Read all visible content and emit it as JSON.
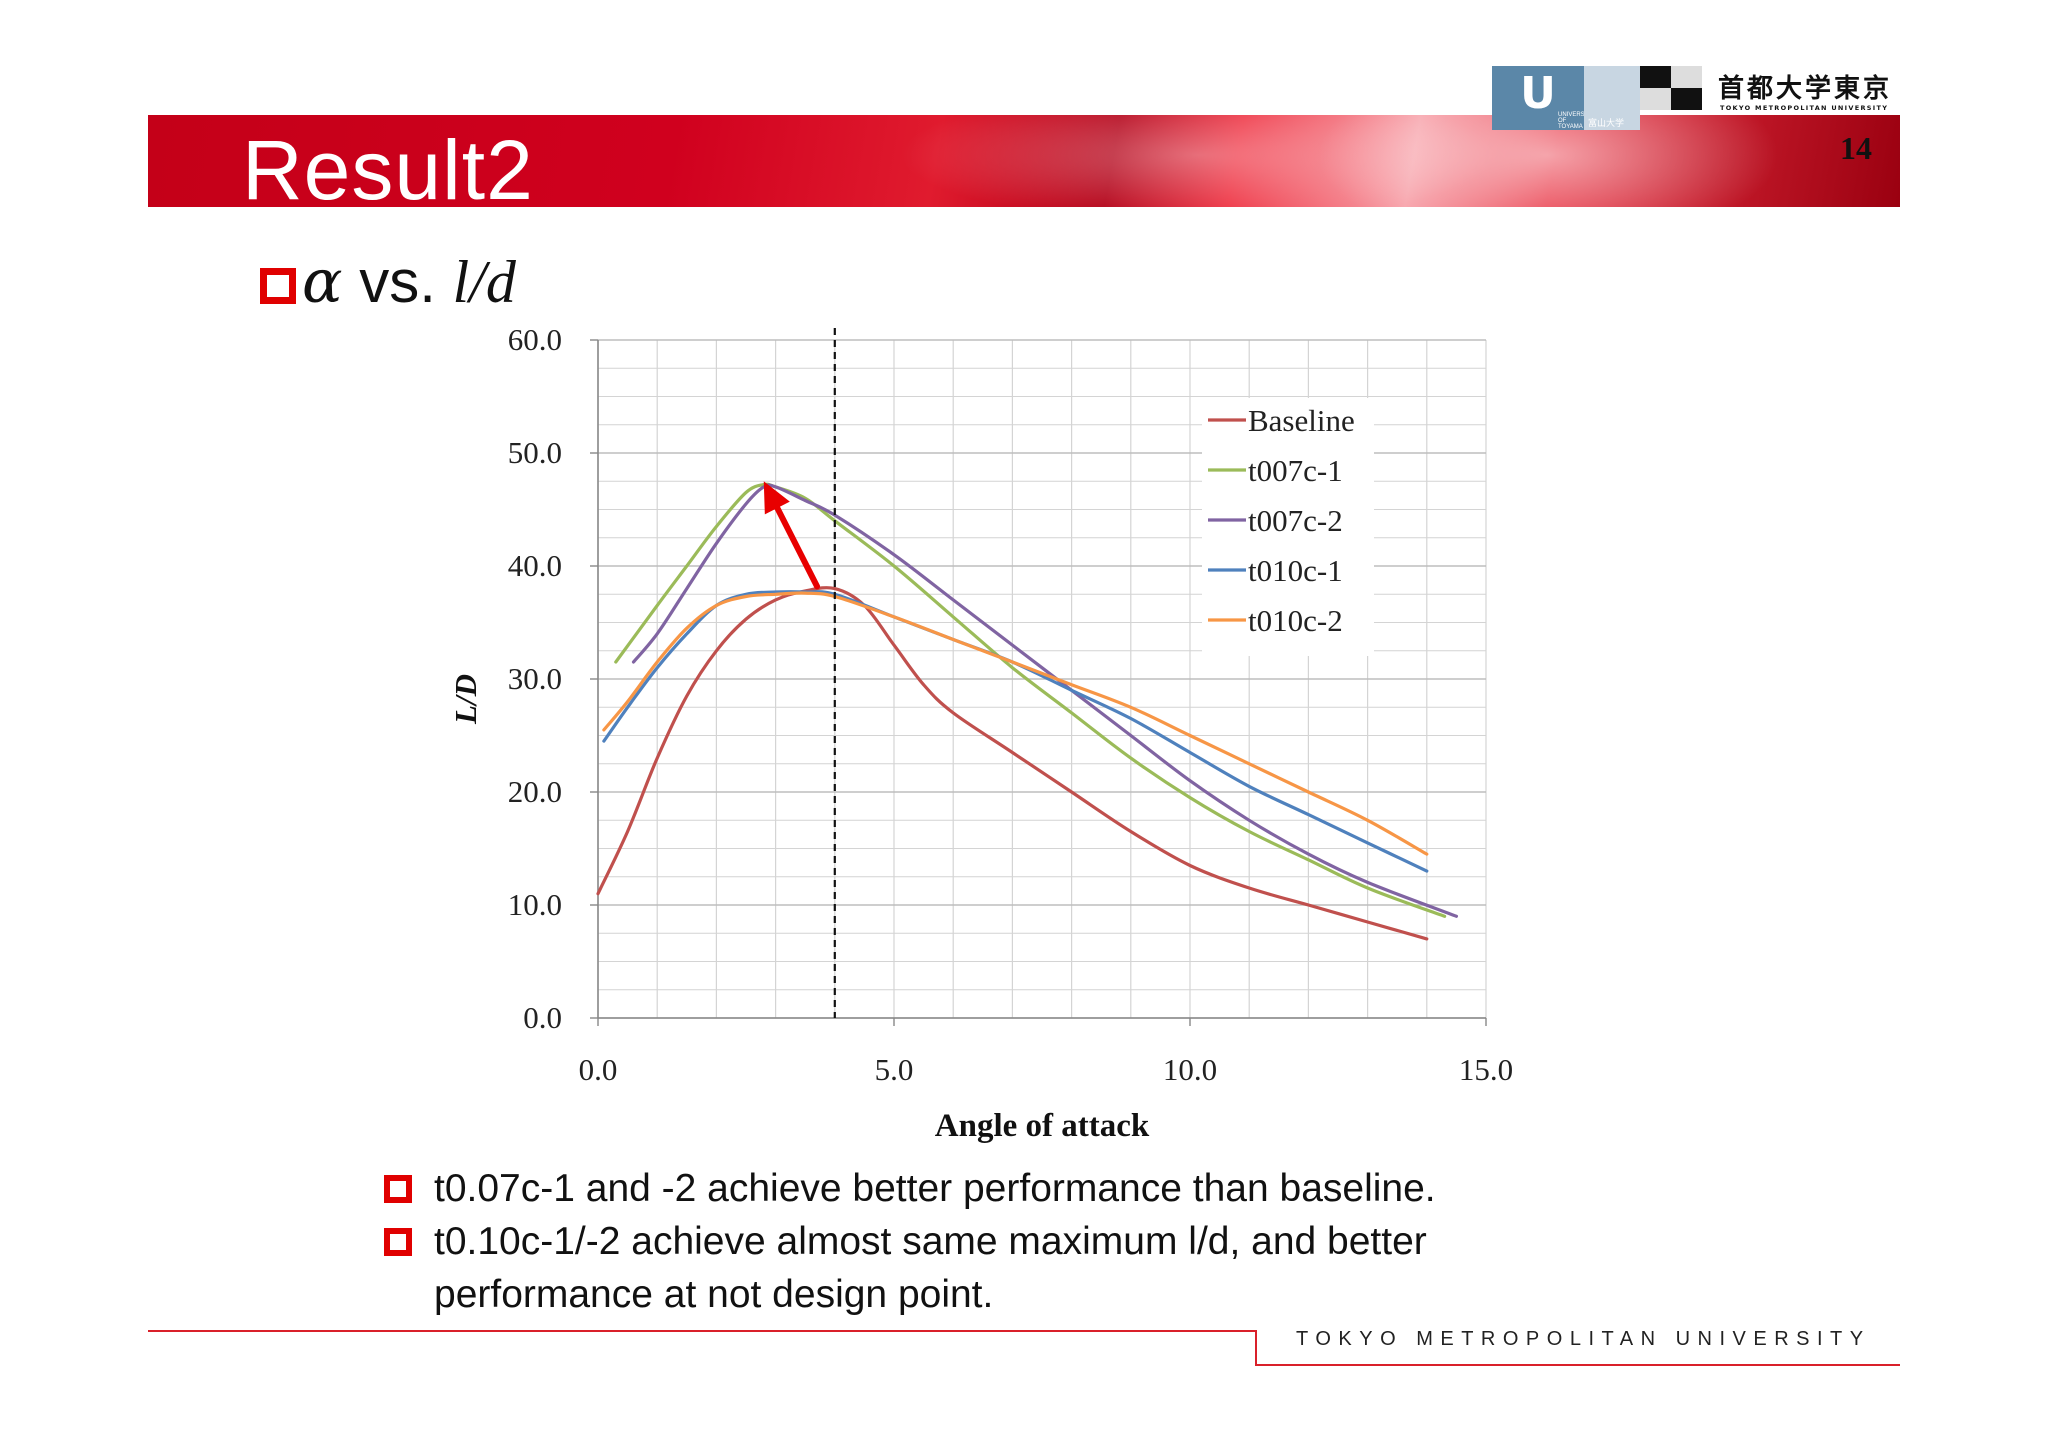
{
  "slide": {
    "title": "Result2",
    "page_number": "14",
    "subtitle": {
      "symbol": "α",
      "vs": "vs.",
      "ratio": "l/d"
    },
    "footer": "TOKYO METROPOLITAN UNIVERSITY"
  },
  "logos": {
    "toyama": {
      "glyph": "U",
      "sub_text": "富山大学",
      "caption": "UNIVERSITY OF TOYAMA"
    },
    "tmu": {
      "jp": "首都大学東京",
      "en": "TOKYO METROPOLITAN UNIVERSITY"
    }
  },
  "bullets": [
    {
      "line1": "t0.07c-1 and -2 achieve better performance than baseline.",
      "line2": ""
    },
    {
      "line1": "t0.10c-1/-2 achieve almost same maximum l/d, and better",
      "line2": "performance at not design point."
    }
  ],
  "colors": {
    "accent_red": "#e00000",
    "grid": "#d4d4d4",
    "baseline": "#c0504d",
    "t007c1": "#9bbb59",
    "t007c2": "#8064a2",
    "t010c1": "#4f81bd",
    "t010c2": "#f79646",
    "arrow": "#e80000"
  },
  "chart_data": {
    "type": "line",
    "title": "",
    "xlabel": "Angle of attack",
    "ylabel": "L/D",
    "xlim": [
      0,
      15
    ],
    "ylim": [
      0,
      60
    ],
    "x_ticks": [
      "0.0",
      "5.0",
      "10.0",
      "15.0"
    ],
    "y_ticks": [
      "0.0",
      "10.0",
      "20.0",
      "30.0",
      "40.0",
      "50.0",
      "60.0"
    ],
    "grid": true,
    "legend_position": "top-right",
    "design_point_x": 4.0,
    "series": [
      {
        "name": "Baseline",
        "color": "#c0504d",
        "points": [
          [
            0,
            11
          ],
          [
            0.5,
            16.5
          ],
          [
            1,
            23
          ],
          [
            1.5,
            28.5
          ],
          [
            2,
            32.5
          ],
          [
            2.5,
            35.3
          ],
          [
            3,
            37
          ],
          [
            3.5,
            37.8
          ],
          [
            4,
            38
          ],
          [
            4.5,
            36.5
          ],
          [
            5,
            33
          ],
          [
            5.5,
            29.5
          ],
          [
            6,
            27
          ],
          [
            7,
            23.5
          ],
          [
            8,
            20
          ],
          [
            9,
            16.5
          ],
          [
            10,
            13.5
          ],
          [
            11,
            11.5
          ],
          [
            12,
            10
          ],
          [
            13,
            8.5
          ],
          [
            14,
            7
          ]
        ]
      },
      {
        "name": "t007c-1",
        "color": "#9bbb59",
        "points": [
          [
            0.3,
            31.5
          ],
          [
            1,
            36.5
          ],
          [
            1.5,
            40
          ],
          [
            2,
            43.5
          ],
          [
            2.5,
            46.5
          ],
          [
            2.8,
            47.2
          ],
          [
            3,
            47
          ],
          [
            3.5,
            46
          ],
          [
            4,
            44
          ],
          [
            5,
            40
          ],
          [
            6,
            35.5
          ],
          [
            7,
            31
          ],
          [
            8,
            27
          ],
          [
            9,
            23
          ],
          [
            10,
            19.5
          ],
          [
            11,
            16.5
          ],
          [
            12,
            14
          ],
          [
            13,
            11.5
          ],
          [
            14.3,
            9
          ]
        ]
      },
      {
        "name": "t007c-2",
        "color": "#8064a2",
        "points": [
          [
            0.6,
            31.5
          ],
          [
            1,
            34
          ],
          [
            1.5,
            38
          ],
          [
            2,
            42
          ],
          [
            2.5,
            45.5
          ],
          [
            2.8,
            47
          ],
          [
            3,
            47
          ],
          [
            3.5,
            45.8
          ],
          [
            4,
            44.5
          ],
          [
            5,
            41
          ],
          [
            6,
            37
          ],
          [
            7,
            33
          ],
          [
            8,
            29
          ],
          [
            9,
            25
          ],
          [
            10,
            21
          ],
          [
            11,
            17.5
          ],
          [
            12,
            14.5
          ],
          [
            13,
            12
          ],
          [
            14.5,
            9
          ]
        ]
      },
      {
        "name": "t010c-1",
        "color": "#4f81bd",
        "points": [
          [
            0.1,
            24.5
          ],
          [
            0.5,
            27.5
          ],
          [
            1,
            31
          ],
          [
            1.5,
            34
          ],
          [
            2,
            36.5
          ],
          [
            2.5,
            37.5
          ],
          [
            3,
            37.7
          ],
          [
            3.5,
            37.7
          ],
          [
            4,
            37.5
          ],
          [
            5,
            35.5
          ],
          [
            6,
            33.5
          ],
          [
            7,
            31.5
          ],
          [
            8,
            29
          ],
          [
            9,
            26.5
          ],
          [
            10,
            23.5
          ],
          [
            11,
            20.5
          ],
          [
            12,
            18
          ],
          [
            13,
            15.5
          ],
          [
            14,
            13
          ]
        ]
      },
      {
        "name": "t010c-2",
        "color": "#f79646",
        "points": [
          [
            0.1,
            25.5
          ],
          [
            0.5,
            28
          ],
          [
            1,
            31.5
          ],
          [
            1.5,
            34.5
          ],
          [
            2,
            36.5
          ],
          [
            2.5,
            37.3
          ],
          [
            3,
            37.5
          ],
          [
            3.5,
            37.6
          ],
          [
            4,
            37.3
          ],
          [
            5,
            35.5
          ],
          [
            6,
            33.5
          ],
          [
            7,
            31.5
          ],
          [
            8,
            29.5
          ],
          [
            9,
            27.5
          ],
          [
            10,
            25
          ],
          [
            11,
            22.5
          ],
          [
            12,
            20
          ],
          [
            13,
            17.5
          ],
          [
            14,
            14.5
          ]
        ]
      }
    ],
    "annotation": {
      "type": "arrow",
      "from": [
        3.7,
        38.2
      ],
      "to": [
        2.8,
        47.5
      ],
      "color": "#e80000"
    }
  }
}
